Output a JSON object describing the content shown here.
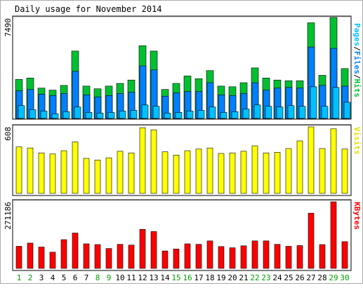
{
  "title": "Daily usage for November 2014",
  "chart_data": [
    {
      "type": "bar",
      "panel": "pages-files-hits",
      "axis_label_parts": [
        {
          "text": "Pages",
          "color": "#00c0ff"
        },
        {
          "text": "/",
          "color": "#000000"
        },
        {
          "text": "Files",
          "color": "#0080ff"
        },
        {
          "text": "/",
          "color": "#000000"
        },
        {
          "text": "Hits",
          "color": "#00c030"
        }
      ],
      "max_label": "7490",
      "ylim": [
        0,
        7490
      ],
      "categories": [
        "1",
        "2",
        "3",
        "4",
        "5",
        "6",
        "7",
        "8",
        "9",
        "10",
        "11",
        "12",
        "13",
        "14",
        "15",
        "16",
        "17",
        "18",
        "19",
        "20",
        "21",
        "22",
        "23",
        "24",
        "25",
        "26",
        "27",
        "28",
        "29",
        "30"
      ],
      "series": [
        {
          "name": "Hits",
          "color": "#00c030",
          "values": [
            2900,
            3000,
            2250,
            2100,
            2450,
            5000,
            2400,
            2200,
            2400,
            2600,
            2850,
            5400,
            5000,
            2150,
            2600,
            3150,
            2950,
            3550,
            2400,
            2350,
            2650,
            3750,
            3000,
            2850,
            2800,
            2800,
            7100,
            3200,
            7490,
            3700
          ]
        },
        {
          "name": "Files",
          "color": "#0080ff",
          "values": [
            2050,
            2150,
            1800,
            1700,
            1850,
            3500,
            1750,
            1600,
            1700,
            1850,
            1950,
            3900,
            3600,
            1650,
            1900,
            2000,
            2000,
            2650,
            1750,
            1700,
            1850,
            2650,
            2100,
            2250,
            2300,
            2250,
            5300,
            2450,
            5200,
            2400
          ]
        },
        {
          "name": "Pages",
          "color": "#00c0ff",
          "values": [
            950,
            650,
            550,
            350,
            500,
            850,
            450,
            400,
            450,
            550,
            600,
            1000,
            900,
            400,
            450,
            550,
            600,
            850,
            450,
            500,
            700,
            1000,
            900,
            850,
            950,
            900,
            2350,
            900,
            2300,
            1200
          ]
        }
      ]
    },
    {
      "type": "bar",
      "panel": "visits",
      "axis_label_parts": [
        {
          "text": "Visits",
          "color": "#e0e000"
        }
      ],
      "max_label": "608",
      "ylim": [
        0,
        608
      ],
      "series": [
        {
          "name": "Visits",
          "color": "#ffff00",
          "values": [
            425,
            415,
            370,
            360,
            390,
            470,
            320,
            305,
            325,
            385,
            370,
            600,
            580,
            380,
            350,
            390,
            405,
            415,
            365,
            370,
            385,
            435,
            370,
            375,
            410,
            480,
            608,
            410,
            590,
            405
          ]
        }
      ]
    },
    {
      "type": "bar",
      "panel": "kbytes",
      "axis_label_parts": [
        {
          "text": "KBytes",
          "color": "#ff0000"
        }
      ],
      "max_label": "271186",
      "ylim": [
        0,
        271186
      ],
      "series": [
        {
          "name": "KBytes",
          "color": "#ff0000",
          "values": [
            90000,
            103000,
            87000,
            66000,
            117000,
            144000,
            100000,
            97000,
            81000,
            98000,
            95000,
            159000,
            150000,
            71000,
            79000,
            100000,
            98000,
            112000,
            89000,
            84000,
            92000,
            112000,
            112000,
            98000,
            90000,
            93000,
            225000,
            97000,
            271186,
            109000
          ]
        }
      ]
    }
  ],
  "day_labels": [
    {
      "text": "1",
      "color": "#00a000"
    },
    {
      "text": "2",
      "color": "#00a000"
    },
    {
      "text": "3",
      "color": "#000000"
    },
    {
      "text": "4",
      "color": "#000000"
    },
    {
      "text": "5",
      "color": "#000000"
    },
    {
      "text": "6",
      "color": "#000000"
    },
    {
      "text": "7",
      "color": "#000000"
    },
    {
      "text": "8",
      "color": "#00a000"
    },
    {
      "text": "9",
      "color": "#00a000"
    },
    {
      "text": "10",
      "color": "#000000"
    },
    {
      "text": "11",
      "color": "#000000"
    },
    {
      "text": "12",
      "color": "#000000"
    },
    {
      "text": "13",
      "color": "#000000"
    },
    {
      "text": "14",
      "color": "#000000"
    },
    {
      "text": "15",
      "color": "#00a000"
    },
    {
      "text": "16",
      "color": "#00a000"
    },
    {
      "text": "17",
      "color": "#000000"
    },
    {
      "text": "18",
      "color": "#000000"
    },
    {
      "text": "19",
      "color": "#000000"
    },
    {
      "text": "20",
      "color": "#000000"
    },
    {
      "text": "21",
      "color": "#000000"
    },
    {
      "text": "22",
      "color": "#00a000"
    },
    {
      "text": "23",
      "color": "#00a000"
    },
    {
      "text": "24",
      "color": "#000000"
    },
    {
      "text": "25",
      "color": "#000000"
    },
    {
      "text": "26",
      "color": "#000000"
    },
    {
      "text": "27",
      "color": "#000000"
    },
    {
      "text": "28",
      "color": "#000000"
    },
    {
      "text": "29",
      "color": "#00a000"
    },
    {
      "text": "30",
      "color": "#00a000"
    }
  ]
}
